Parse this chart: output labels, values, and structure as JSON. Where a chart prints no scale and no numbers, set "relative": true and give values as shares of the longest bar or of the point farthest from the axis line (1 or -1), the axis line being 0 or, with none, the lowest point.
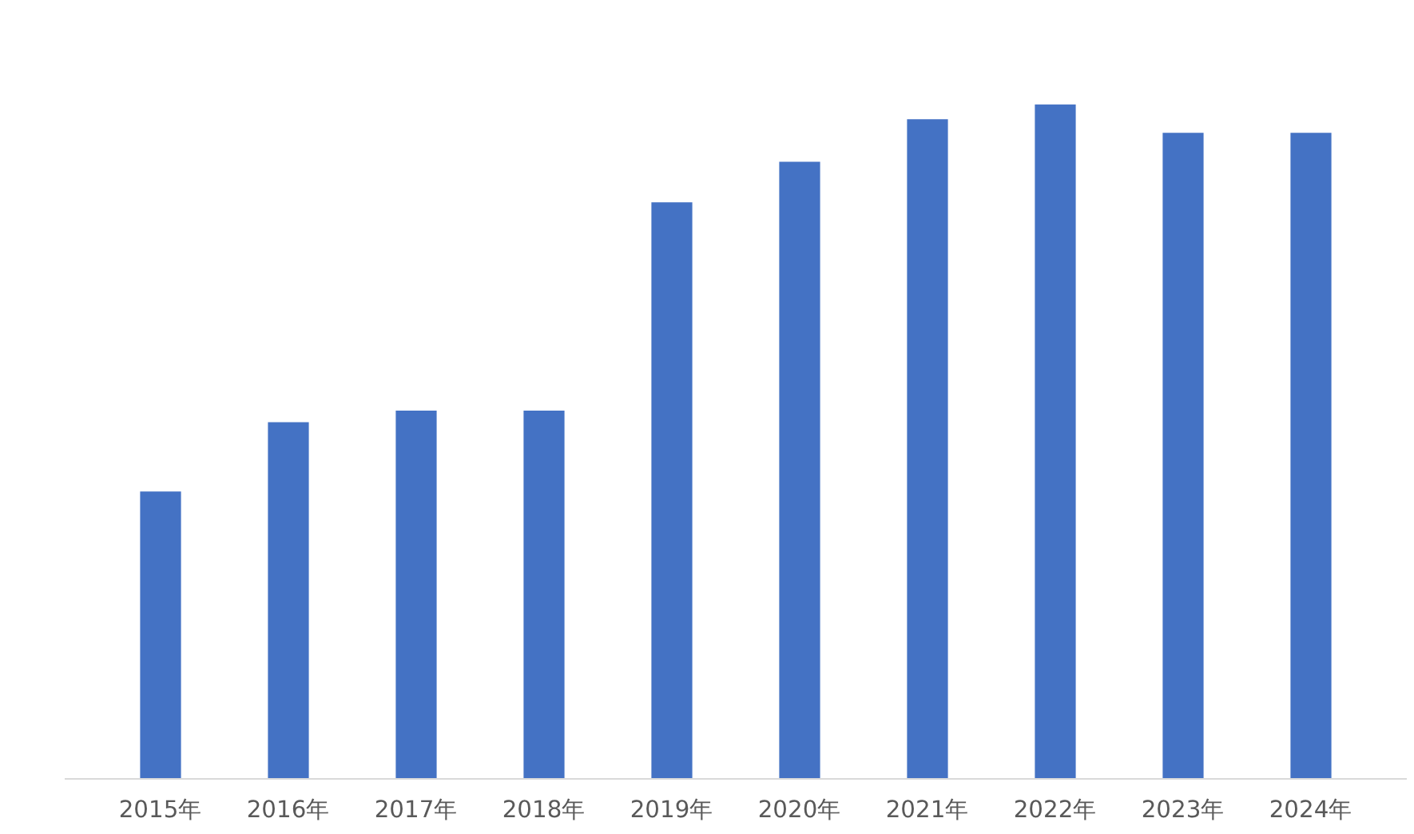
{
  "chart_data": {
    "type": "bar",
    "relative": true,
    "categories": [
      "2015年",
      "2016年",
      "2017年",
      "2018年",
      "2019年",
      "2020年",
      "2021年",
      "2022年",
      "2023年",
      "2024年"
    ],
    "values": [
      0.426,
      0.529,
      0.546,
      0.546,
      0.855,
      0.915,
      0.978,
      1,
      0.958,
      0.958
    ],
    "color": "#4472c4",
    "grid": false
  }
}
